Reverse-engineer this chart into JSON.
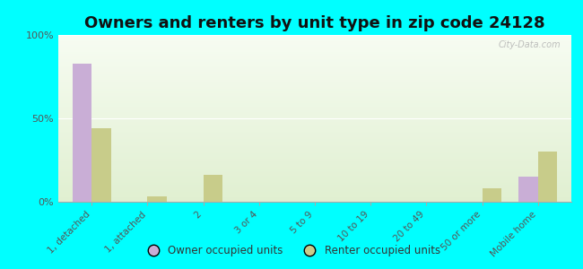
{
  "title": "Owners and renters by unit type in zip code 24128",
  "categories": [
    "1, detached",
    "1, attached",
    "2",
    "3 or 4",
    "5 to 9",
    "10 to 19",
    "20 to 49",
    "50 or more",
    "Mobile home"
  ],
  "owner_values": [
    83,
    0,
    0,
    0,
    0,
    0,
    0,
    0,
    15
  ],
  "renter_values": [
    44,
    3,
    16,
    0,
    0,
    0,
    0,
    8,
    30
  ],
  "owner_color": "#c9aed6",
  "renter_color": "#c8cc8a",
  "background_color": "#00ffff",
  "ylim": [
    0,
    100
  ],
  "yticks": [
    0,
    50,
    100
  ],
  "ytick_labels": [
    "0%",
    "50%",
    "100%"
  ],
  "bar_width": 0.35,
  "legend_owner": "Owner occupied units",
  "legend_renter": "Renter occupied units",
  "title_fontsize": 13,
  "watermark": "City-Data.com"
}
